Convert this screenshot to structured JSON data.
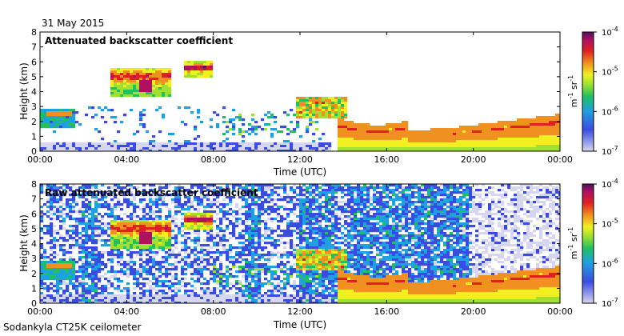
{
  "date": "31 May 2015",
  "footer": "Sodankyla CT25K ceilometer",
  "chart_data": [
    {
      "type": "heatmap",
      "title": "Attenuated backscatter coefficient",
      "xlabel": "Time (UTC)",
      "ylabel": "Height (km)",
      "x_ticks": [
        "00:00",
        "04:00",
        "08:00",
        "12:00",
        "16:00",
        "20:00",
        "00:00"
      ],
      "x_range_hours": [
        0,
        24
      ],
      "y_ticks": [
        0,
        1,
        2,
        3,
        4,
        5,
        6,
        7,
        8
      ],
      "ylim": [
        0,
        8
      ],
      "colorbar": {
        "scale": "log",
        "unit": "m-1 sr-1",
        "unit_base": "m",
        "unit_exp": "-1",
        "unit_base2": "sr",
        "unit_exp2": "-1",
        "ticks": [
          {
            "base": "10",
            "exp": "-4"
          },
          {
            "base": "10",
            "exp": "-5"
          },
          {
            "base": "10",
            "exp": "-6"
          },
          {
            "base": "10",
            "exp": "-7"
          }
        ],
        "range": [
          1e-07,
          0.0001
        ]
      }
    },
    {
      "type": "heatmap",
      "title": "Raw attenuated backscatter coefficient",
      "xlabel": "Time (UTC)",
      "ylabel": "Height (km)",
      "x_ticks": [
        "00:00",
        "04:00",
        "08:00",
        "12:00",
        "16:00",
        "20:00",
        "00:00"
      ],
      "x_range_hours": [
        0,
        24
      ],
      "y_ticks": [
        0,
        1,
        2,
        3,
        4,
        5,
        6,
        7,
        8
      ],
      "ylim": [
        0,
        8
      ],
      "colorbar": {
        "scale": "log",
        "unit": "m-1 sr-1",
        "unit_base": "m",
        "unit_exp": "-1",
        "unit_base2": "sr",
        "unit_exp2": "-1",
        "ticks": [
          {
            "base": "10",
            "exp": "-4"
          },
          {
            "base": "10",
            "exp": "-5"
          },
          {
            "base": "10",
            "exp": "-6"
          },
          {
            "base": "10",
            "exp": "-7"
          }
        ],
        "range": [
          1e-07,
          0.0001
        ]
      }
    }
  ]
}
